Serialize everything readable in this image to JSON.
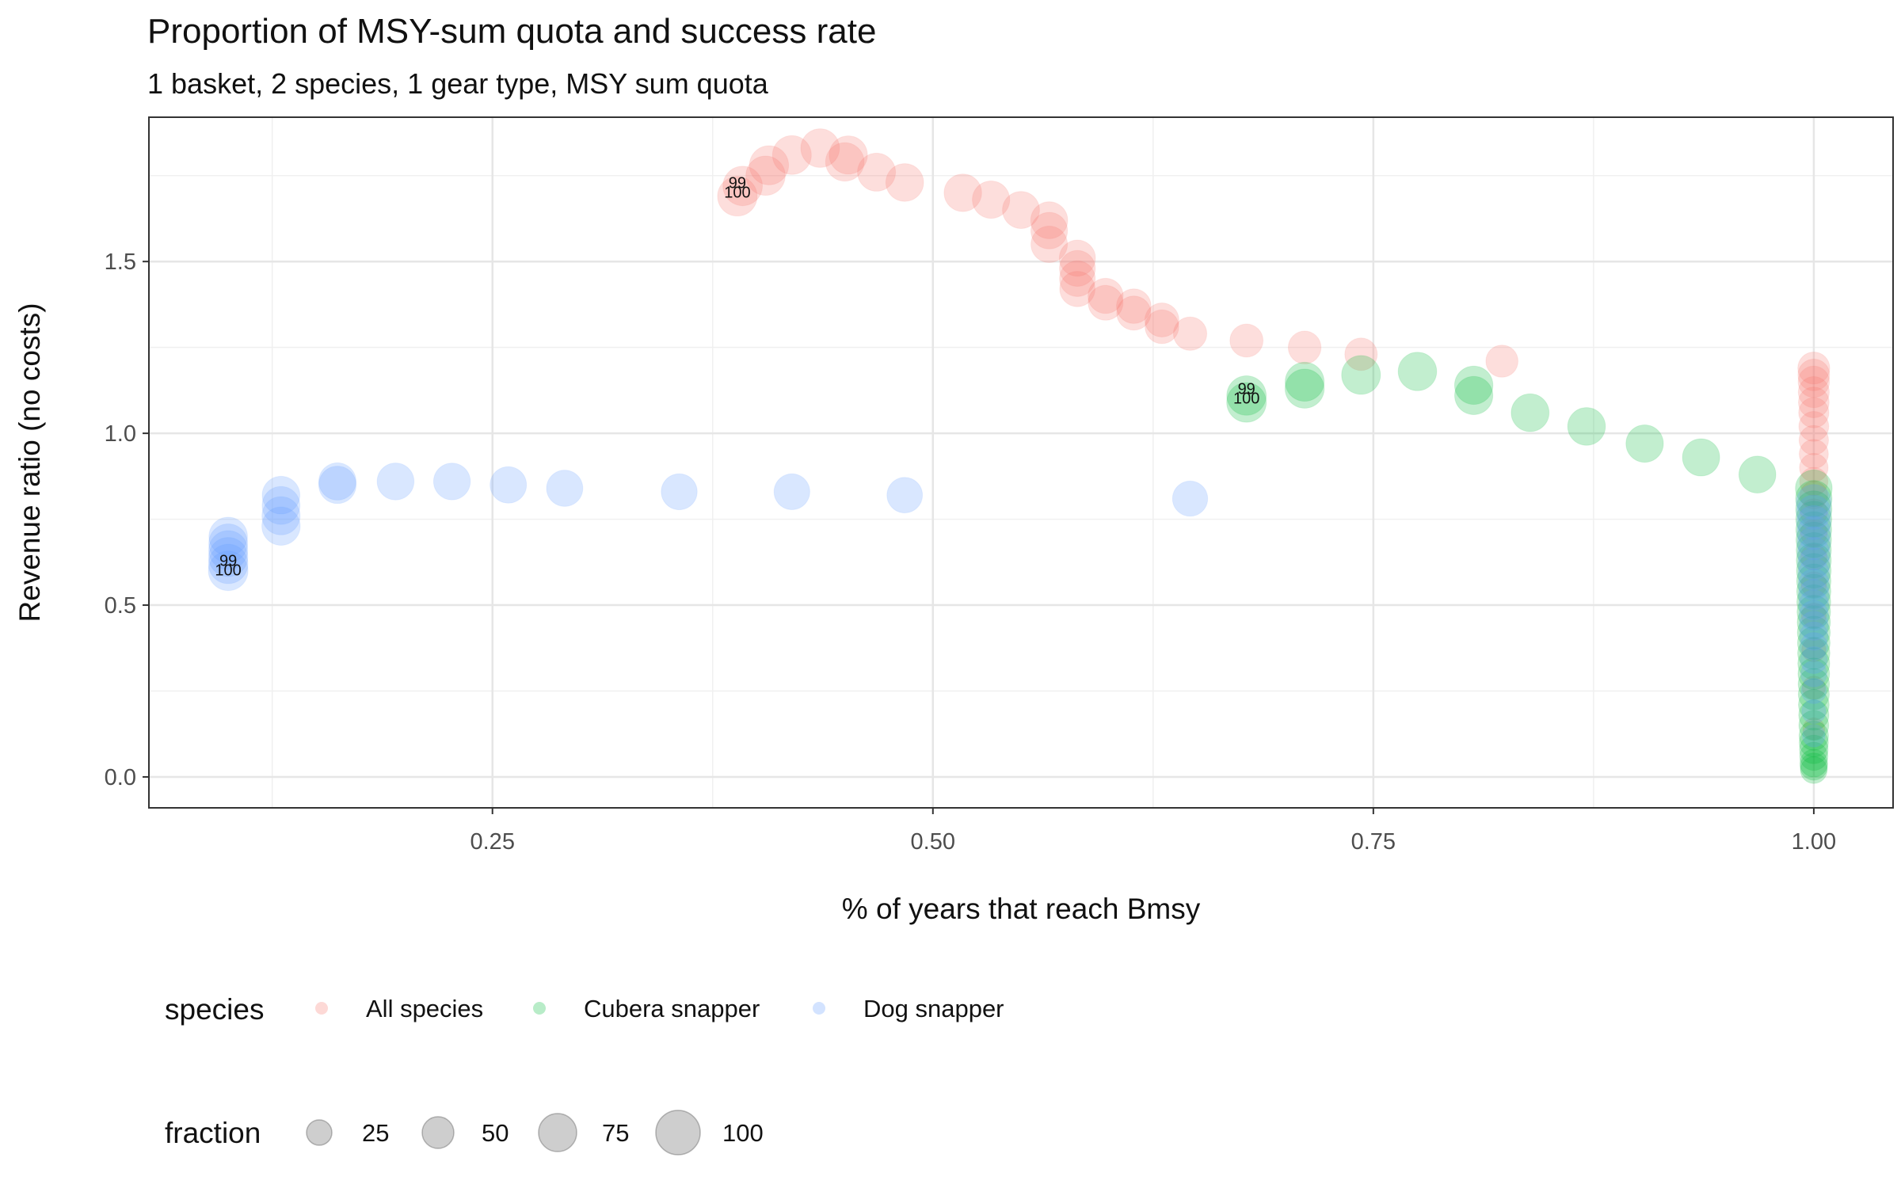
{
  "chart_data": {
    "type": "scatter",
    "title": "Proportion of MSY-sum quota and success rate",
    "subtitle": "1 basket, 2 species, 1 gear type, MSY sum quota",
    "xlabel": "% of years that reach Bmsy",
    "ylabel": "Revenue ratio (no costs)",
    "xlim": [
      0.055,
      1.045
    ],
    "ylim": [
      -0.09,
      1.92
    ],
    "x_ticks": [
      "0.25",
      "0.50",
      "0.75",
      "1.00"
    ],
    "y_ticks": [
      "0.0",
      "0.5",
      "1.0",
      "1.5"
    ],
    "grid": true,
    "legend_position": "bottom",
    "legend": {
      "color_title": "species",
      "size_title": "fraction",
      "size_values": [
        "25",
        "50",
        "75",
        "100"
      ]
    },
    "colors": {
      "All species": "#F8766D",
      "Cubera snapper": "#00BA38",
      "Dog snapper": "#619CFF",
      "size_legend": "#666666"
    },
    "annotations": [
      {
        "series": "All species",
        "labels": [
          "99",
          "100"
        ],
        "x": 0.389,
        "y": 1.7
      },
      {
        "series": "Cubera snapper",
        "labels": [
          "99",
          "100"
        ],
        "x": 0.678,
        "y": 1.1
      },
      {
        "series": "Dog snapper",
        "labels": [
          "99",
          "100"
        ],
        "x": 0.1,
        "y": 0.6
      }
    ],
    "series": [
      {
        "name": "All species",
        "points": [
          [
            0.389,
            1.69,
            100
          ],
          [
            0.392,
            1.72,
            99
          ],
          [
            0.405,
            1.75,
            97
          ],
          [
            0.407,
            1.78,
            95
          ],
          [
            0.42,
            1.81,
            93
          ],
          [
            0.436,
            1.83,
            91
          ],
          [
            0.45,
            1.79,
            89
          ],
          [
            0.452,
            1.81,
            87
          ],
          [
            0.468,
            1.76,
            85
          ],
          [
            0.484,
            1.73,
            83
          ],
          [
            0.517,
            1.7,
            81
          ],
          [
            0.533,
            1.68,
            79
          ],
          [
            0.55,
            1.65,
            77
          ],
          [
            0.566,
            1.62,
            75
          ],
          [
            0.566,
            1.59,
            73
          ],
          [
            0.566,
            1.55,
            71
          ],
          [
            0.582,
            1.51,
            69
          ],
          [
            0.582,
            1.48,
            67
          ],
          [
            0.582,
            1.45,
            65
          ],
          [
            0.582,
            1.42,
            63
          ],
          [
            0.598,
            1.4,
            61
          ],
          [
            0.598,
            1.38,
            59
          ],
          [
            0.614,
            1.37,
            57
          ],
          [
            0.614,
            1.35,
            55
          ],
          [
            0.63,
            1.33,
            53
          ],
          [
            0.63,
            1.31,
            51
          ],
          [
            0.646,
            1.29,
            49
          ],
          [
            0.678,
            1.27,
            47
          ],
          [
            0.711,
            1.25,
            45
          ],
          [
            0.743,
            1.23,
            43
          ],
          [
            0.823,
            1.21,
            41
          ],
          [
            1.0,
            1.19,
            40
          ],
          [
            1.0,
            1.17,
            38
          ],
          [
            1.0,
            1.15,
            36
          ],
          [
            1.0,
            1.12,
            34
          ],
          [
            1.0,
            1.09,
            32
          ],
          [
            1.0,
            1.06,
            30
          ],
          [
            1.0,
            1.02,
            28
          ],
          [
            1.0,
            0.98,
            26
          ],
          [
            1.0,
            0.94,
            24
          ],
          [
            1.0,
            0.9,
            22
          ],
          [
            1.0,
            0.86,
            20
          ],
          [
            1.0,
            0.82,
            18
          ],
          [
            1.0,
            0.77,
            16
          ],
          [
            1.0,
            0.71,
            14
          ],
          [
            1.0,
            0.64,
            12
          ],
          [
            1.0,
            0.56,
            10
          ],
          [
            1.0,
            0.47,
            8
          ],
          [
            1.0,
            0.37,
            6
          ],
          [
            1.0,
            0.26,
            4
          ],
          [
            1.0,
            0.14,
            2
          ]
        ]
      },
      {
        "name": "Cubera snapper",
        "points": [
          [
            0.678,
            1.09,
            100
          ],
          [
            0.678,
            1.11,
            98
          ],
          [
            0.711,
            1.13,
            96
          ],
          [
            0.711,
            1.15,
            94
          ],
          [
            0.743,
            1.17,
            92
          ],
          [
            0.775,
            1.18,
            90
          ],
          [
            0.807,
            1.14,
            88
          ],
          [
            0.807,
            1.11,
            86
          ],
          [
            0.839,
            1.06,
            84
          ],
          [
            0.871,
            1.02,
            82
          ],
          [
            0.904,
            0.97,
            80
          ],
          [
            0.936,
            0.93,
            78
          ],
          [
            0.968,
            0.88,
            76
          ],
          [
            1.0,
            0.84,
            74
          ],
          [
            1.0,
            0.81,
            72
          ],
          [
            1.0,
            0.78,
            70
          ],
          [
            1.0,
            0.75,
            68
          ],
          [
            1.0,
            0.72,
            66
          ],
          [
            1.0,
            0.69,
            64
          ],
          [
            1.0,
            0.66,
            62
          ],
          [
            1.0,
            0.63,
            60
          ],
          [
            1.0,
            0.6,
            58
          ],
          [
            1.0,
            0.57,
            56
          ],
          [
            1.0,
            0.54,
            54
          ],
          [
            1.0,
            0.51,
            52
          ],
          [
            1.0,
            0.48,
            50
          ],
          [
            1.0,
            0.45,
            48
          ],
          [
            1.0,
            0.42,
            46
          ],
          [
            1.0,
            0.39,
            44
          ],
          [
            1.0,
            0.36,
            42
          ],
          [
            1.0,
            0.33,
            40
          ],
          [
            1.0,
            0.3,
            38
          ],
          [
            1.0,
            0.27,
            36
          ],
          [
            1.0,
            0.24,
            34
          ],
          [
            1.0,
            0.21,
            32
          ],
          [
            1.0,
            0.18,
            30
          ],
          [
            1.0,
            0.15,
            28
          ],
          [
            1.0,
            0.12,
            26
          ],
          [
            1.0,
            0.1,
            24
          ],
          [
            1.0,
            0.08,
            22
          ],
          [
            1.0,
            0.06,
            20
          ],
          [
            1.0,
            0.04,
            18
          ],
          [
            1.0,
            0.03,
            16
          ],
          [
            1.0,
            0.02,
            14
          ]
        ]
      },
      {
        "name": "Dog snapper",
        "points": [
          [
            0.1,
            0.6,
            100
          ],
          [
            0.1,
            0.62,
            98
          ],
          [
            0.1,
            0.64,
            96
          ],
          [
            0.1,
            0.66,
            94
          ],
          [
            0.1,
            0.68,
            92
          ],
          [
            0.1,
            0.7,
            90
          ],
          [
            0.13,
            0.73,
            88
          ],
          [
            0.13,
            0.76,
            86
          ],
          [
            0.13,
            0.79,
            84
          ],
          [
            0.13,
            0.82,
            82
          ],
          [
            0.162,
            0.85,
            80
          ],
          [
            0.162,
            0.86,
            78
          ],
          [
            0.195,
            0.86,
            76
          ],
          [
            0.227,
            0.86,
            74
          ],
          [
            0.259,
            0.85,
            72
          ],
          [
            0.291,
            0.84,
            70
          ],
          [
            0.356,
            0.83,
            68
          ],
          [
            0.42,
            0.83,
            66
          ],
          [
            0.484,
            0.82,
            64
          ],
          [
            0.646,
            0.81,
            62
          ],
          [
            1.0,
            0.8,
            60
          ],
          [
            1.0,
            0.77,
            57
          ],
          [
            1.0,
            0.74,
            54
          ],
          [
            1.0,
            0.71,
            51
          ],
          [
            1.0,
            0.68,
            48
          ],
          [
            1.0,
            0.65,
            45
          ],
          [
            1.0,
            0.62,
            42
          ],
          [
            1.0,
            0.59,
            39
          ],
          [
            1.0,
            0.56,
            36
          ],
          [
            1.0,
            0.53,
            33
          ],
          [
            1.0,
            0.5,
            30
          ],
          [
            1.0,
            0.47,
            27
          ],
          [
            1.0,
            0.44,
            24
          ],
          [
            1.0,
            0.41,
            21
          ],
          [
            1.0,
            0.38,
            18
          ],
          [
            1.0,
            0.34,
            15
          ],
          [
            1.0,
            0.3,
            12
          ],
          [
            1.0,
            0.25,
            9
          ],
          [
            1.0,
            0.19,
            6
          ],
          [
            1.0,
            0.12,
            3
          ]
        ]
      }
    ]
  }
}
